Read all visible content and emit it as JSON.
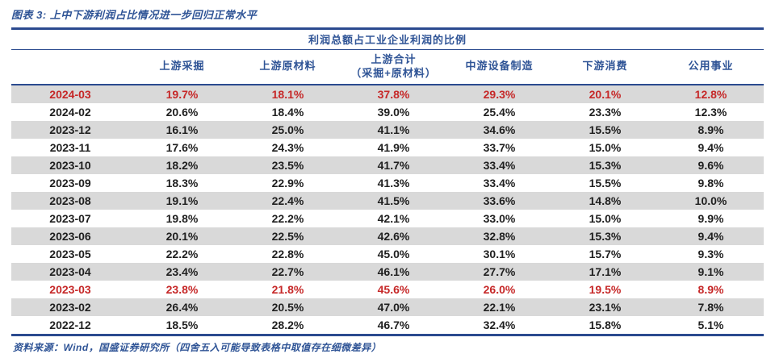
{
  "caption": "图表 3: 上中下游利润占比情况进一步回归正常水平",
  "table": {
    "title": "利润总额占工业企业利润的比例",
    "date_column_header": "",
    "columns": [
      {
        "label": "上游采掘",
        "sublabel": ""
      },
      {
        "label": "上游原材料",
        "sublabel": ""
      },
      {
        "label": "上游合计",
        "sublabel": "（采掘+原材料）"
      },
      {
        "label": "中游设备制造",
        "sublabel": ""
      },
      {
        "label": "下游消费",
        "sublabel": ""
      },
      {
        "label": "公用事业",
        "sublabel": ""
      }
    ],
    "rows": [
      {
        "date": "2024-03",
        "values": [
          "19.7%",
          "18.1%",
          "37.8%",
          "29.3%",
          "20.1%",
          "12.8%"
        ],
        "red": true
      },
      {
        "date": "2024-02",
        "values": [
          "20.6%",
          "18.4%",
          "39.0%",
          "25.4%",
          "23.3%",
          "12.3%"
        ],
        "red": false
      },
      {
        "date": "2023-12",
        "values": [
          "16.1%",
          "25.0%",
          "41.1%",
          "34.6%",
          "15.5%",
          "8.9%"
        ],
        "red": false
      },
      {
        "date": "2023-11",
        "values": [
          "17.6%",
          "24.3%",
          "41.9%",
          "33.7%",
          "15.0%",
          "9.4%"
        ],
        "red": false
      },
      {
        "date": "2023-10",
        "values": [
          "18.2%",
          "23.5%",
          "41.7%",
          "33.4%",
          "15.3%",
          "9.6%"
        ],
        "red": false
      },
      {
        "date": "2023-09",
        "values": [
          "18.3%",
          "22.9%",
          "41.3%",
          "33.4%",
          "15.5%",
          "9.8%"
        ],
        "red": false
      },
      {
        "date": "2023-08",
        "values": [
          "19.1%",
          "22.4%",
          "41.5%",
          "33.6%",
          "14.8%",
          "10.0%"
        ],
        "red": false
      },
      {
        "date": "2023-07",
        "values": [
          "19.8%",
          "22.2%",
          "42.1%",
          "33.0%",
          "15.0%",
          "9.9%"
        ],
        "red": false
      },
      {
        "date": "2023-06",
        "values": [
          "20.1%",
          "22.5%",
          "42.6%",
          "32.8%",
          "15.3%",
          "9.4%"
        ],
        "red": false
      },
      {
        "date": "2023-05",
        "values": [
          "22.2%",
          "22.8%",
          "45.0%",
          "30.1%",
          "15.7%",
          "9.3%"
        ],
        "red": false
      },
      {
        "date": "2023-04",
        "values": [
          "23.4%",
          "22.7%",
          "46.1%",
          "27.7%",
          "17.1%",
          "9.1%"
        ],
        "red": false
      },
      {
        "date": "2023-03",
        "values": [
          "23.8%",
          "21.8%",
          "45.6%",
          "26.0%",
          "19.5%",
          "8.9%"
        ],
        "red": true
      },
      {
        "date": "2023-02",
        "values": [
          "26.4%",
          "20.5%",
          "47.0%",
          "22.1%",
          "23.1%",
          "7.8%"
        ],
        "red": false
      },
      {
        "date": "2022-12",
        "values": [
          "18.5%",
          "28.2%",
          "46.7%",
          "32.4%",
          "15.8%",
          "5.1%"
        ],
        "red": false
      }
    ]
  },
  "source_note": "资料来源：Wind，国盛证券研究所（四舍五入可能导致表格中取值存在细微差异）",
  "colors": {
    "accent_blue_text": "#2f5496",
    "rule_blue_line": "#2b4a8f",
    "highlight_red": "#c62828",
    "stripe_gray": "#d9d9d9"
  }
}
